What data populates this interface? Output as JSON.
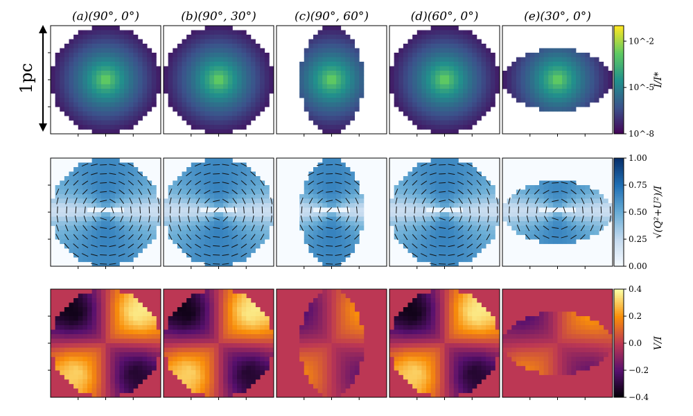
{
  "chart_data": {
    "type": "heatmap",
    "columns": [
      {
        "label": "(a)(90°, 0°)",
        "inclination_deg": 90,
        "azimuth_deg": 0,
        "aspect": 1.0
      },
      {
        "label": "(b)(90°, 30°)",
        "inclination_deg": 90,
        "azimuth_deg": 30,
        "aspect": 1.0
      },
      {
        "label": "(c)(90°, 60°)",
        "inclination_deg": 90,
        "azimuth_deg": 60,
        "aspect": 0.58
      },
      {
        "label": "(d)(60°, 0°)",
        "inclination_deg": 60,
        "azimuth_deg": 0,
        "aspect": 1.0
      },
      {
        "label": "(e)(30°, 0°)",
        "inclination_deg": 30,
        "azimuth_deg": 0,
        "aspect": 0.58,
        "horizontal": true
      }
    ],
    "rows": [
      {
        "quantity": "I/I*",
        "colorbar_label": "I/I*",
        "colormap": "viridis",
        "scale": "log",
        "range": [
          1e-08,
          0.1
        ],
        "ticks": [
          "10^-2",
          "10^-5",
          "10^-8"
        ],
        "tick_values": [
          -2,
          -5,
          -8
        ]
      },
      {
        "quantity": "sqrt(Q^2+U^2)/I",
        "colorbar_label": "√(Q²+U²)/I",
        "colormap": "blues",
        "scale": "linear",
        "range": [
          0.0,
          1.0
        ],
        "ticks": [
          "1.00",
          "0.75",
          "0.50",
          "0.25",
          "0.00"
        ],
        "tick_values": [
          1.0,
          0.75,
          0.5,
          0.25,
          0.0
        ],
        "overlay": "polarization vectors"
      },
      {
        "quantity": "V/I",
        "colorbar_label": "V/I",
        "colormap": "inferno",
        "scale": "linear",
        "range": [
          -0.4,
          0.4
        ],
        "ticks": [
          "0.4",
          "0.2",
          "0.0",
          "−0.2",
          "−0.4"
        ],
        "tick_values": [
          0.4,
          0.2,
          0.0,
          -0.2,
          -0.4
        ]
      }
    ],
    "scale_bar": {
      "label": "1pc"
    },
    "grid": false,
    "legend": "colorbars at right of each row"
  }
}
